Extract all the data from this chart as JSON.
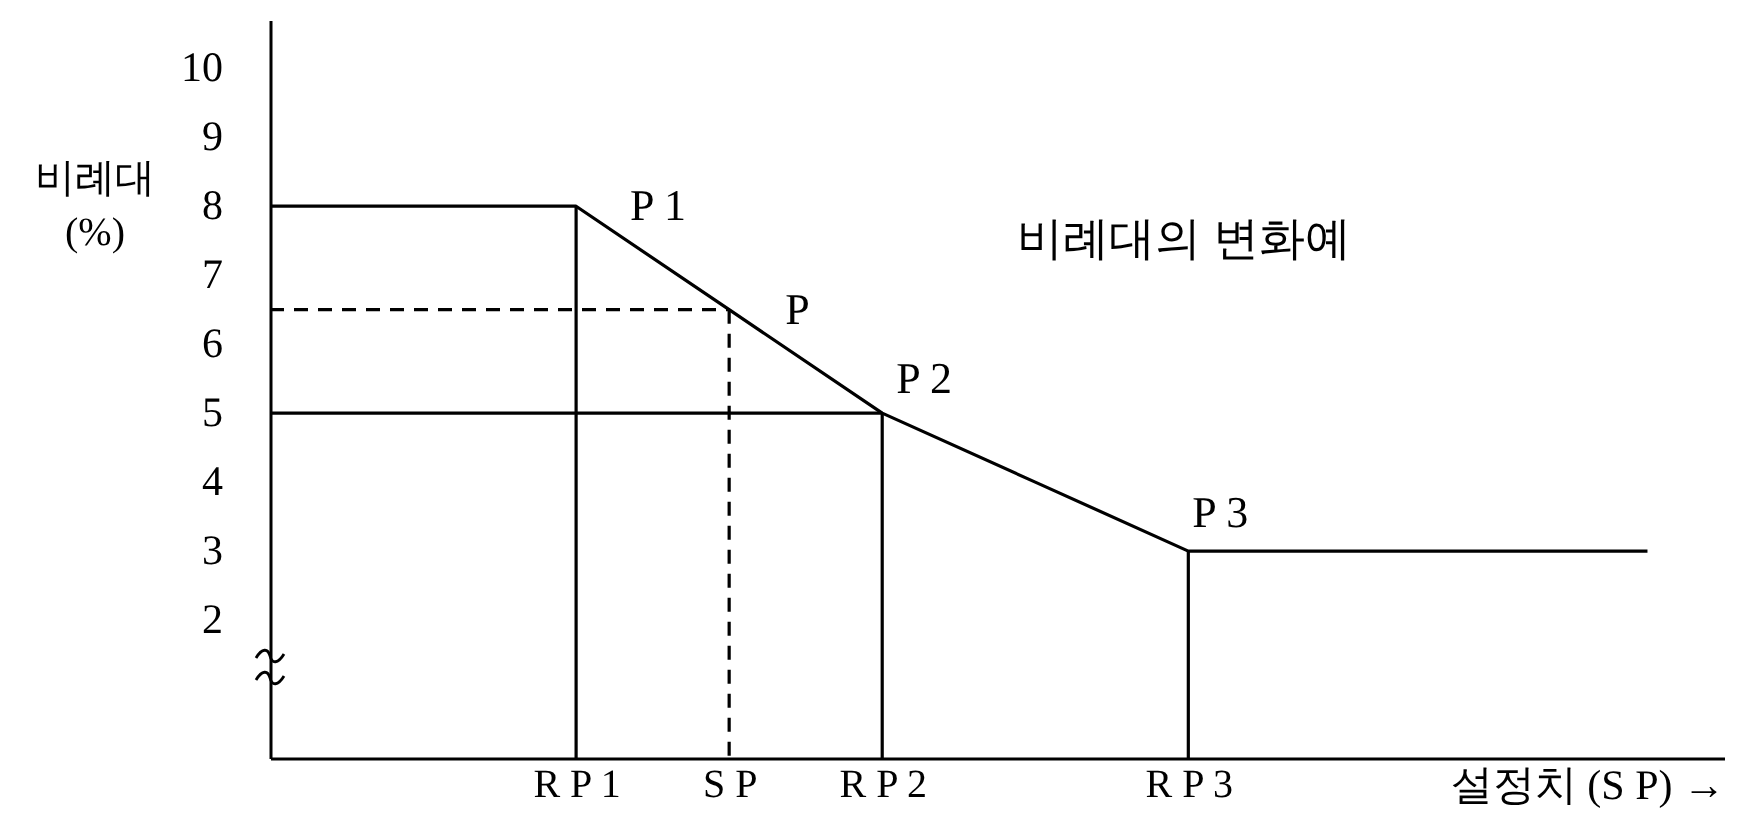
{
  "chart_data": {
    "type": "line",
    "ylabel": "비례대\n(%)",
    "xlabel": "설정치 (S P) →",
    "categories": [
      null,
      null,
      "R P 1",
      "S P",
      "R P 2",
      null,
      "R P 3",
      null,
      null,
      null
    ],
    "ylim": [
      0,
      10.7
    ],
    "yticks": [
      2,
      3,
      4,
      5,
      6,
      7,
      8,
      9,
      10
    ],
    "series": [
      {
        "color": "#000000",
        "values": [
          8,
          8,
          8,
          6.5,
          5,
          4,
          3,
          3,
          3,
          3
        ]
      },
      {
        "color": "#000000",
        "x": [
          "R P 1",
          "R P 1"
        ],
        "values": [
          8,
          0
        ]
      },
      {
        "color": "#000000",
        "values": [
          5,
          5,
          5,
          5,
          5,
          null,
          null,
          null,
          null,
          null
        ]
      },
      {
        "color": "#000000",
        "x": [
          "R P 2",
          "R P 2"
        ],
        "values": [
          5,
          0
        ]
      },
      {
        "color": "#000000",
        "x": [
          "R P 3",
          "R P 3"
        ],
        "values": [
          3,
          0
        ]
      },
      {
        "color": "#000000",
        "values": [
          6.5,
          6.5,
          6.5,
          6.5,
          null,
          null,
          null,
          null,
          null,
          null
        ],
        "line_style": "dashed"
      },
      {
        "color": "#000000",
        "x": [
          "S P",
          "S P"
        ],
        "values": [
          6.5,
          0
        ],
        "line_style": "dashed"
      }
    ],
    "annotations": [
      "비례대의 변화예",
      {
        "text": "P 1",
        "x": "R P 1",
        "y": 8
      },
      {
        "text": "P",
        "x": "S P",
        "y": 6.5
      },
      {
        "text": "P 2",
        "x": "R P 2",
        "y": 5
      },
      {
        "text": "P 3",
        "x": "R P 3",
        "y": 3
      }
    ]
  }
}
